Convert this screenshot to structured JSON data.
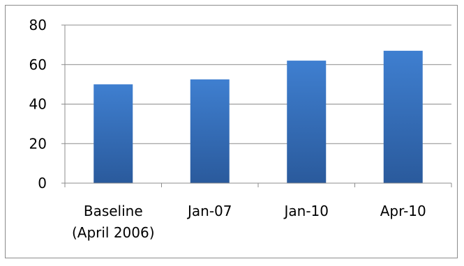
{
  "chart_data": {
    "type": "bar",
    "categories": [
      [
        "Baseline",
        "(April 2006)"
      ],
      [
        "Jan-07"
      ],
      [
        "Jan-10"
      ],
      [
        "Apr-10"
      ]
    ],
    "values": [
      50,
      52.5,
      62,
      67
    ],
    "ylim": [
      0,
      80
    ],
    "yticks": [
      "0",
      "20",
      "40",
      "60",
      "80"
    ],
    "grid": true,
    "legend": "none",
    "colors": {
      "bar_top": "#3f7fd0",
      "bar_bottom": "#2a5a9c",
      "grid": "#8c8c8c",
      "axis": "#8c8c8c"
    }
  }
}
